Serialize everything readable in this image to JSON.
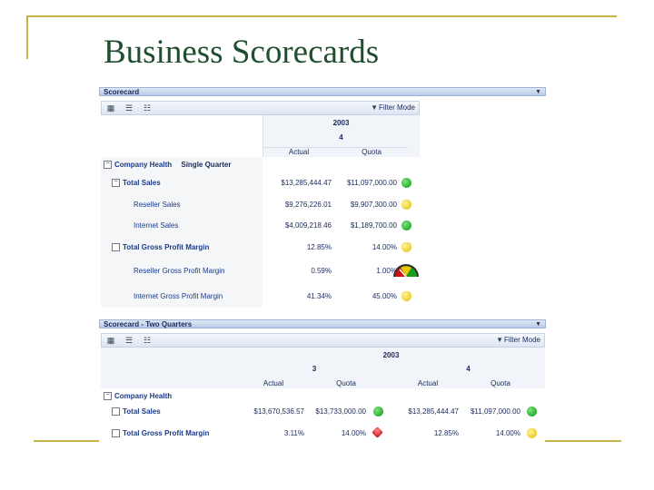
{
  "slide": {
    "title": "Business Scorecards"
  },
  "panel1": {
    "header": "Scorecard",
    "filter_mode": "Filter Mode",
    "year": "2003",
    "quarter": "4",
    "col_actual": "Actual",
    "col_quota": "Quota",
    "group_label": "Company Health",
    "group_sub": "Single Quarter",
    "rows": [
      {
        "label": "Total Sales",
        "actual": "$13,285,444.47",
        "quota": "$11,097,000.00",
        "status": "green"
      },
      {
        "label": "Reseller Sales",
        "actual": "$9,276,226.01",
        "quota": "$9,907,300.00",
        "status": "yellow"
      },
      {
        "label": "Internet Sales",
        "actual": "$4,009,218.46",
        "quota": "$1,189,700.00",
        "status": "green"
      },
      {
        "label": "Total Gross Profit Margin",
        "actual": "12.85%",
        "quota": "14.00%",
        "status": "yellow"
      },
      {
        "label": "Reseller Gross Profit Margin",
        "actual": "0.59%",
        "quota": "1.00%",
        "status": "gauge"
      },
      {
        "label": "Internet Gross Profit Margin",
        "actual": "41.34%",
        "quota": "45.00%",
        "status": "yellow"
      }
    ]
  },
  "panel2": {
    "header": "Scorecard - Two Quarters",
    "filter_mode": "Filter Mode",
    "year": "2003",
    "q1": "3",
    "q2": "4",
    "col_actual": "Actual",
    "col_quota": "Quota",
    "group_label": "Company Health",
    "rows": [
      {
        "label": "Total Sales",
        "a1": "$13,670,536.57",
        "q1v": "$13,733,000.00",
        "s1": "green",
        "a2": "$13,285,444.47",
        "q2v": "$11,097,000.00",
        "s2": "green"
      },
      {
        "label": "Total Gross Profit Margin",
        "a1": "3.11%",
        "q1v": "14.00%",
        "s1": "red",
        "a2": "12.85%",
        "q2v": "14.00%",
        "s2": "yellow"
      }
    ]
  },
  "icons": [
    "grid-icon",
    "expand-icon",
    "collapse-icon",
    "funnel-icon"
  ]
}
